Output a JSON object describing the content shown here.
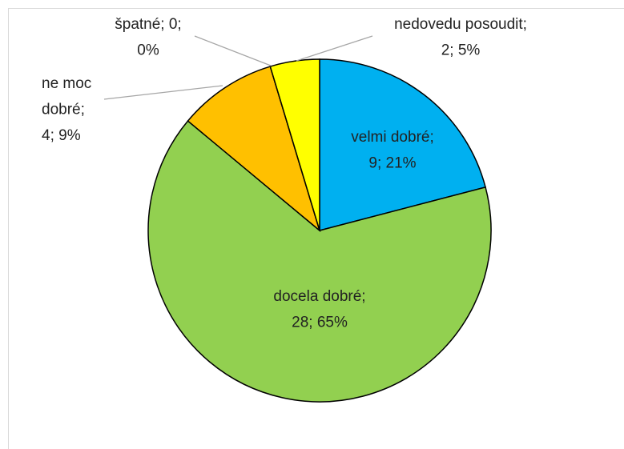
{
  "chart_data": {
    "type": "pie",
    "categories": [
      "velmi dobré",
      "docela dobré",
      "ne moc dobré",
      "špatné",
      "nedovedu posoudit"
    ],
    "values": [
      9,
      28,
      4,
      0,
      2
    ],
    "value_labels": [
      [
        "velmi dobré;",
        "9; 21%"
      ],
      [
        "docela dobré;",
        "28; 65%"
      ],
      [
        "ne moc",
        "dobré;",
        "4; 9%"
      ],
      [
        "špatné; 0;",
        "0%"
      ],
      [
        "nedovedu posoudit;",
        "2; 5%"
      ]
    ],
    "colors": [
      "#00B0F0",
      "#92D050",
      "#FFC000",
      "#FF0000",
      "#FFFF00"
    ]
  }
}
